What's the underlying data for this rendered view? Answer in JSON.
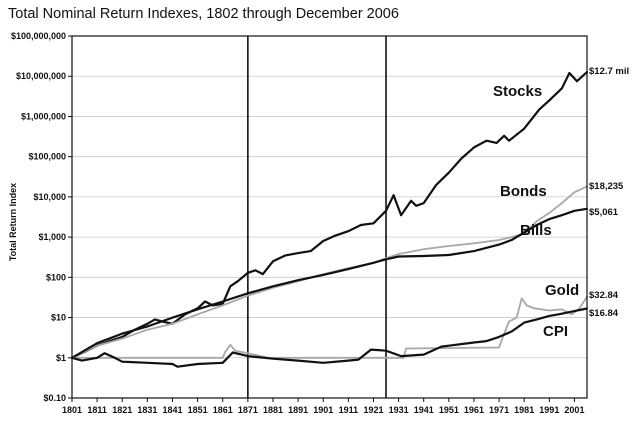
{
  "chart_data": {
    "type": "line",
    "title": "Total Nominal Return Indexes, 1802 through December 2006",
    "xlabel": "",
    "ylabel": "Total Return Index",
    "y_scale": "log",
    "ylim": [
      0.1,
      100000000
    ],
    "xlim": [
      1801,
      2006
    ],
    "y_ticks": [
      {
        "value": 0.1,
        "label": "$0.10"
      },
      {
        "value": 1,
        "label": "$1"
      },
      {
        "value": 10,
        "label": "$10"
      },
      {
        "value": 100,
        "label": "$100"
      },
      {
        "value": 1000,
        "label": "$1,000"
      },
      {
        "value": 10000,
        "label": "$10,000"
      },
      {
        "value": 100000,
        "label": "$100,000"
      },
      {
        "value": 1000000,
        "label": "$1,000,000"
      },
      {
        "value": 10000000,
        "label": "$10,000,000"
      },
      {
        "value": 100000000,
        "label": "$100,000,000"
      }
    ],
    "x_ticks": [
      "1801",
      "1811",
      "1821",
      "1831",
      "1841",
      "1851",
      "1861",
      "1871",
      "1881",
      "1891",
      "1901",
      "1911",
      "1921",
      "1931",
      "1941",
      "1951",
      "1961",
      "1971",
      "1981",
      "1991",
      "2001"
    ],
    "vertical_markers": [
      1871,
      1926
    ],
    "series": [
      {
        "name": "Stocks",
        "end_label": "$12.7 mil",
        "color": "#111111",
        "points": [
          [
            1801,
            1
          ],
          [
            1806,
            1.4
          ],
          [
            1811,
            2
          ],
          [
            1816,
            2.6
          ],
          [
            1821,
            3.3
          ],
          [
            1826,
            5
          ],
          [
            1831,
            7
          ],
          [
            1834,
            9
          ],
          [
            1837,
            8
          ],
          [
            1841,
            7
          ],
          [
            1846,
            12
          ],
          [
            1851,
            17
          ],
          [
            1854,
            25
          ],
          [
            1857,
            20
          ],
          [
            1861,
            22
          ],
          [
            1864,
            60
          ],
          [
            1867,
            80
          ],
          [
            1871,
            130
          ],
          [
            1874,
            150
          ],
          [
            1877,
            120
          ],
          [
            1881,
            250
          ],
          [
            1886,
            350
          ],
          [
            1891,
            400
          ],
          [
            1896,
            450
          ],
          [
            1901,
            800
          ],
          [
            1906,
            1100
          ],
          [
            1911,
            1400
          ],
          [
            1916,
            2000
          ],
          [
            1921,
            2200
          ],
          [
            1926,
            4500
          ],
          [
            1929,
            11000
          ],
          [
            1932,
            3500
          ],
          [
            1936,
            8000
          ],
          [
            1938,
            6000
          ],
          [
            1941,
            7000
          ],
          [
            1946,
            20000
          ],
          [
            1951,
            40000
          ],
          [
            1956,
            90000
          ],
          [
            1961,
            170000
          ],
          [
            1966,
            250000
          ],
          [
            1970,
            220000
          ],
          [
            1973,
            330000
          ],
          [
            1975,
            250000
          ],
          [
            1981,
            500000
          ],
          [
            1987,
            1500000
          ],
          [
            1991,
            2500000
          ],
          [
            1996,
            5000000
          ],
          [
            1999,
            12000000
          ],
          [
            2002,
            7500000
          ],
          [
            2006,
            12700000
          ]
        ]
      },
      {
        "name": "Bonds",
        "end_label": "$18,235",
        "color": "#a8a8a8",
        "points": [
          [
            1801,
            1
          ],
          [
            1811,
            2
          ],
          [
            1821,
            3
          ],
          [
            1831,
            5
          ],
          [
            1841,
            7
          ],
          [
            1851,
            12
          ],
          [
            1861,
            20
          ],
          [
            1871,
            35
          ],
          [
            1881,
            55
          ],
          [
            1891,
            80
          ],
          [
            1901,
            120
          ],
          [
            1911,
            170
          ],
          [
            1921,
            230
          ],
          [
            1926,
            300
          ],
          [
            1931,
            380
          ],
          [
            1941,
            500
          ],
          [
            1951,
            600
          ],
          [
            1961,
            700
          ],
          [
            1971,
            850
          ],
          [
            1976,
            1000
          ],
          [
            1981,
            1200
          ],
          [
            1986,
            2500
          ],
          [
            1991,
            4000
          ],
          [
            1996,
            7000
          ],
          [
            2001,
            13000
          ],
          [
            2006,
            18235
          ]
        ]
      },
      {
        "name": "Bills",
        "end_label": "$5,061",
        "color": "#111111",
        "points": [
          [
            1801,
            1
          ],
          [
            1811,
            2.3
          ],
          [
            1821,
            4
          ],
          [
            1831,
            6
          ],
          [
            1841,
            10
          ],
          [
            1851,
            16
          ],
          [
            1861,
            25
          ],
          [
            1871,
            40
          ],
          [
            1881,
            60
          ],
          [
            1891,
            85
          ],
          [
            1901,
            115
          ],
          [
            1911,
            160
          ],
          [
            1921,
            230
          ],
          [
            1926,
            280
          ],
          [
            1931,
            330
          ],
          [
            1941,
            340
          ],
          [
            1951,
            360
          ],
          [
            1961,
            450
          ],
          [
            1971,
            650
          ],
          [
            1976,
            850
          ],
          [
            1981,
            1300
          ],
          [
            1986,
            2000
          ],
          [
            1991,
            2800
          ],
          [
            1996,
            3500
          ],
          [
            2001,
            4500
          ],
          [
            2006,
            5061
          ]
        ]
      },
      {
        "name": "Gold",
        "end_label": "$32.84",
        "color": "#a8a8a8",
        "points": [
          [
            1801,
            1
          ],
          [
            1861,
            1
          ],
          [
            1862,
            1.4
          ],
          [
            1864,
            2.1
          ],
          [
            1866,
            1.5
          ],
          [
            1871,
            1.3
          ],
          [
            1879,
            1
          ],
          [
            1933,
            1
          ],
          [
            1934,
            1.7
          ],
          [
            1971,
            1.8
          ],
          [
            1973,
            4
          ],
          [
            1975,
            8
          ],
          [
            1978,
            10
          ],
          [
            1980,
            30
          ],
          [
            1982,
            20
          ],
          [
            1985,
            17
          ],
          [
            1991,
            15
          ],
          [
            1996,
            16
          ],
          [
            2000,
            12
          ],
          [
            2003,
            17
          ],
          [
            2006,
            32.84
          ]
        ]
      },
      {
        "name": "CPI",
        "end_label": "$16.84",
        "color": "#111111",
        "points": [
          [
            1801,
            1
          ],
          [
            1805,
            0.85
          ],
          [
            1811,
            1
          ],
          [
            1814,
            1.3
          ],
          [
            1818,
            1
          ],
          [
            1821,
            0.8
          ],
          [
            1831,
            0.75
          ],
          [
            1841,
            0.7
          ],
          [
            1843,
            0.6
          ],
          [
            1851,
            0.7
          ],
          [
            1861,
            0.75
          ],
          [
            1865,
            1.35
          ],
          [
            1871,
            1.1
          ],
          [
            1881,
            0.95
          ],
          [
            1891,
            0.85
          ],
          [
            1901,
            0.75
          ],
          [
            1911,
            0.85
          ],
          [
            1915,
            0.9
          ],
          [
            1920,
            1.6
          ],
          [
            1926,
            1.5
          ],
          [
            1932,
            1.1
          ],
          [
            1941,
            1.2
          ],
          [
            1948,
            1.9
          ],
          [
            1951,
            2
          ],
          [
            1961,
            2.4
          ],
          [
            1966,
            2.6
          ],
          [
            1971,
            3.3
          ],
          [
            1976,
            4.5
          ],
          [
            1981,
            7.5
          ],
          [
            1986,
            9
          ],
          [
            1991,
            11
          ],
          [
            1996,
            12.5
          ],
          [
            2001,
            14.5
          ],
          [
            2006,
            16.84
          ]
        ]
      }
    ]
  }
}
